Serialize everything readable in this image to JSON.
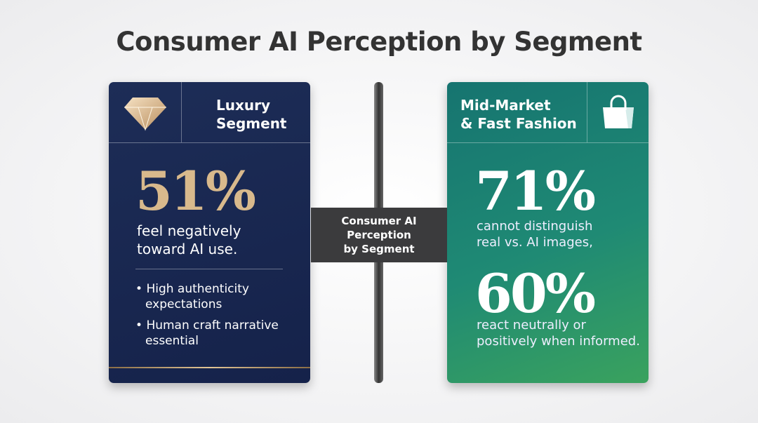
{
  "header": {
    "title": "Consumer AI Perception by Segment"
  },
  "left_panel": {
    "heading": [
      "Luxury",
      "Segment"
    ],
    "stat": "51%",
    "description": [
      "feel negatively",
      "toward AI use."
    ],
    "bullets": [
      [
        "High authenticity",
        "expectations"
      ],
      [
        "Human craft narrative",
        "essential"
      ]
    ]
  },
  "center_label": [
    "Consumer AI",
    "Perception",
    "by Segment"
  ],
  "right_panel": {
    "heading": [
      "Mid-Market",
      "& Fast Fashion"
    ],
    "stats": [
      {
        "value": "71%",
        "description": [
          "cannot distinguish",
          "real vs. AI images,"
        ]
      },
      {
        "value": "60%",
        "description": [
          "react neutrally or",
          "positively when informed."
        ]
      }
    ]
  }
}
